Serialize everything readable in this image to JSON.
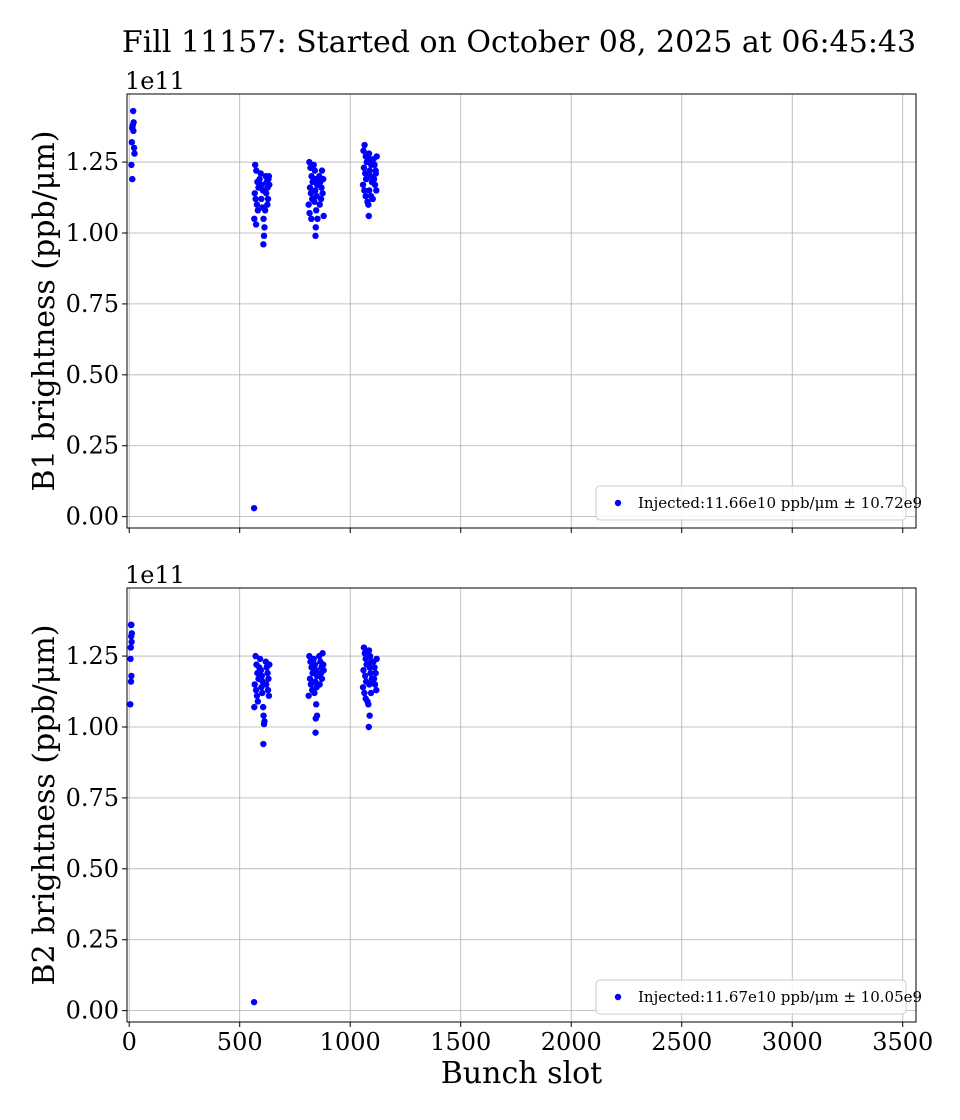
{
  "title": "Fill 11157: Started on October 08, 2025 at 06:45:43",
  "chart_data": [
    {
      "type": "scatter",
      "ylabel": "B1 brightness (ppb/μm)",
      "y_multiplier": "1e11",
      "xlabel": "",
      "xlim": [
        -10,
        3560
      ],
      "ylim": [
        -0.04,
        1.49
      ],
      "x_ticks": [
        0,
        500,
        1000,
        1500,
        2000,
        2500,
        3000,
        3500
      ],
      "x_tick_labels": [],
      "y_ticks": [
        0.0,
        0.25,
        0.5,
        0.75,
        1.0,
        1.25
      ],
      "y_tick_labels": [
        "0.00",
        "0.25",
        "0.50",
        "0.75",
        "1.00",
        "1.25"
      ],
      "grid": true,
      "legend_position": "lower right",
      "color": "#0000ff",
      "series": [
        {
          "name": "Injected:11.66e10 ppb/μm ± 10.72e9",
          "points": [
            [
              18,
              1.43
            ],
            [
              20,
              1.39
            ],
            [
              16,
              1.38
            ],
            [
              14,
              1.37
            ],
            [
              19,
              1.36
            ],
            [
              12,
              1.32
            ],
            [
              22,
              1.3
            ],
            [
              24,
              1.28
            ],
            [
              10,
              1.24
            ],
            [
              14,
              1.19
            ],
            [
              565,
              0.03
            ],
            [
              570,
              1.24
            ],
            [
              575,
              1.22
            ],
            [
              580,
              1.18
            ],
            [
              585,
              1.16
            ],
            [
              568,
              1.14
            ],
            [
              572,
              1.12
            ],
            [
              578,
              1.1
            ],
            [
              582,
              1.08
            ],
            [
              566,
              1.05
            ],
            [
              574,
              1.03
            ],
            [
              590,
              1.19
            ],
            [
              595,
              1.21
            ],
            [
              600,
              1.17
            ],
            [
              605,
              1.15
            ],
            [
              598,
              1.12
            ],
            [
              603,
              1.09
            ],
            [
              608,
              1.05
            ],
            [
              612,
              1.02
            ],
            [
              610,
              0.99
            ],
            [
              607,
              0.96
            ],
            [
              618,
              1.2
            ],
            [
              622,
              1.18
            ],
            [
              626,
              1.16
            ],
            [
              630,
              1.19
            ],
            [
              634,
              1.17
            ],
            [
              620,
              1.14
            ],
            [
              628,
              1.12
            ],
            [
              632,
              1.2
            ],
            [
              615,
              1.08
            ],
            [
              625,
              1.1
            ],
            [
              815,
              1.25
            ],
            [
              820,
              1.23
            ],
            [
              825,
              1.2
            ],
            [
              830,
              1.18
            ],
            [
              818,
              1.16
            ],
            [
              822,
              1.14
            ],
            [
              828,
              1.12
            ],
            [
              812,
              1.1
            ],
            [
              816,
              1.07
            ],
            [
              824,
              1.05
            ],
            [
              835,
              1.24
            ],
            [
              840,
              1.22
            ],
            [
              845,
              1.19
            ],
            [
              850,
              1.17
            ],
            [
              842,
              1.15
            ],
            [
              848,
              1.13
            ],
            [
              838,
              1.11
            ],
            [
              846,
              1.08
            ],
            [
              852,
              1.05
            ],
            [
              844,
              1.02
            ],
            [
              843,
              0.99
            ],
            [
              860,
              1.2
            ],
            [
              865,
              1.18
            ],
            [
              870,
              1.16
            ],
            [
              875,
              1.14
            ],
            [
              868,
              1.12
            ],
            [
              872,
              1.22
            ],
            [
              878,
              1.19
            ],
            [
              862,
              1.1
            ],
            [
              880,
              1.06
            ],
            [
              1060,
              1.29
            ],
            [
              1065,
              1.31
            ],
            [
              1070,
              1.27
            ],
            [
              1075,
              1.25
            ],
            [
              1062,
              1.23
            ],
            [
              1068,
              1.21
            ],
            [
              1072,
              1.19
            ],
            [
              1058,
              1.17
            ],
            [
              1064,
              1.15
            ],
            [
              1070,
              1.13
            ],
            [
              1078,
              1.11
            ],
            [
              1085,
              1.28
            ],
            [
              1090,
              1.26
            ],
            [
              1095,
              1.24
            ],
            [
              1088,
              1.22
            ],
            [
              1092,
              1.2
            ],
            [
              1098,
              1.18
            ],
            [
              1086,
              1.15
            ],
            [
              1094,
              1.13
            ],
            [
              1082,
              1.1
            ],
            [
              1084,
              1.06
            ],
            [
              1105,
              1.26
            ],
            [
              1110,
              1.24
            ],
            [
              1115,
              1.22
            ],
            [
              1120,
              1.27
            ],
            [
              1108,
              1.19
            ],
            [
              1112,
              1.17
            ],
            [
              1118,
              1.15
            ],
            [
              1102,
              1.12
            ],
            [
              1116,
              1.21
            ]
          ]
        }
      ]
    },
    {
      "type": "scatter",
      "ylabel": "B2 brightness (ppb/μm)",
      "y_multiplier": "1e11",
      "xlabel": "Bunch slot",
      "xlim": [
        -10,
        3560
      ],
      "ylim": [
        -0.04,
        1.49
      ],
      "x_ticks": [
        0,
        500,
        1000,
        1500,
        2000,
        2500,
        3000,
        3500
      ],
      "x_tick_labels": [
        "0",
        "500",
        "1000",
        "1500",
        "2000",
        "2500",
        "3000",
        "3500"
      ],
      "y_ticks": [
        0.0,
        0.25,
        0.5,
        0.75,
        1.0,
        1.25
      ],
      "y_tick_labels": [
        "0.00",
        "0.25",
        "0.50",
        "0.75",
        "1.00",
        "1.25"
      ],
      "grid": true,
      "legend_position": "lower right",
      "color": "#0000ff",
      "series": [
        {
          "name": "Injected:11.67e10 ppb/μm ± 10.05e9",
          "points": [
            [
              8,
              1.36
            ],
            [
              10,
              1.36
            ],
            [
              12,
              1.33
            ],
            [
              9,
              1.32
            ],
            [
              11,
              1.3
            ],
            [
              7,
              1.28
            ],
            [
              6,
              1.24
            ],
            [
              10,
              1.18
            ],
            [
              8,
              1.16
            ],
            [
              5,
              1.08
            ],
            [
              565,
              0.03
            ],
            [
              572,
              1.25
            ],
            [
              576,
              1.22
            ],
            [
              580,
              1.19
            ],
            [
              585,
              1.17
            ],
            [
              568,
              1.15
            ],
            [
              574,
              1.13
            ],
            [
              578,
              1.11
            ],
            [
              582,
              1.09
            ],
            [
              566,
              1.07
            ],
            [
              588,
              1.21
            ],
            [
              592,
              1.24
            ],
            [
              596,
              1.2
            ],
            [
              600,
              1.18
            ],
            [
              604,
              1.16
            ],
            [
              598,
              1.14
            ],
            [
              602,
              1.12
            ],
            [
              606,
              1.07
            ],
            [
              608,
              1.04
            ],
            [
              612,
              1.02
            ],
            [
              610,
              1.01
            ],
            [
              607,
              0.94
            ],
            [
              618,
              1.23
            ],
            [
              622,
              1.21
            ],
            [
              626,
              1.19
            ],
            [
              630,
              1.17
            ],
            [
              634,
              1.22
            ],
            [
              620,
              1.15
            ],
            [
              628,
              1.13
            ],
            [
              632,
              1.11
            ],
            [
              815,
              1.25
            ],
            [
              820,
              1.23
            ],
            [
              825,
              1.21
            ],
            [
              830,
              1.19
            ],
            [
              818,
              1.17
            ],
            [
              822,
              1.15
            ],
            [
              828,
              1.13
            ],
            [
              812,
              1.11
            ],
            [
              835,
              1.24
            ],
            [
              840,
              1.22
            ],
            [
              845,
              1.2
            ],
            [
              850,
              1.18
            ],
            [
              842,
              1.16
            ],
            [
              848,
              1.14
            ],
            [
              838,
              1.12
            ],
            [
              846,
              1.08
            ],
            [
              850,
              1.04
            ],
            [
              844,
              1.03
            ],
            [
              843,
              0.98
            ],
            [
              860,
              1.25
            ],
            [
              865,
              1.23
            ],
            [
              870,
              1.21
            ],
            [
              875,
              1.26
            ],
            [
              868,
              1.19
            ],
            [
              872,
              1.17
            ],
            [
              878,
              1.22
            ],
            [
              862,
              1.15
            ],
            [
              880,
              1.2
            ],
            [
              1062,
              1.28
            ],
            [
              1066,
              1.26
            ],
            [
              1070,
              1.24
            ],
            [
              1074,
              1.22
            ],
            [
              1060,
              1.2
            ],
            [
              1068,
              1.18
            ],
            [
              1072,
              1.16
            ],
            [
              1058,
              1.14
            ],
            [
              1064,
              1.12
            ],
            [
              1070,
              1.1
            ],
            [
              1078,
              1.09
            ],
            [
              1085,
              1.27
            ],
            [
              1090,
              1.25
            ],
            [
              1095,
              1.23
            ],
            [
              1088,
              1.21
            ],
            [
              1092,
              1.19
            ],
            [
              1098,
              1.17
            ],
            [
              1086,
              1.15
            ],
            [
              1094,
              1.12
            ],
            [
              1082,
              1.08
            ],
            [
              1088,
              1.04
            ],
            [
              1084,
              1.0
            ],
            [
              1105,
              1.23
            ],
            [
              1110,
              1.21
            ],
            [
              1115,
              1.19
            ],
            [
              1120,
              1.24
            ],
            [
              1108,
              1.17
            ],
            [
              1112,
              1.15
            ],
            [
              1118,
              1.13
            ],
            [
              1102,
              1.16
            ]
          ]
        }
      ]
    }
  ]
}
